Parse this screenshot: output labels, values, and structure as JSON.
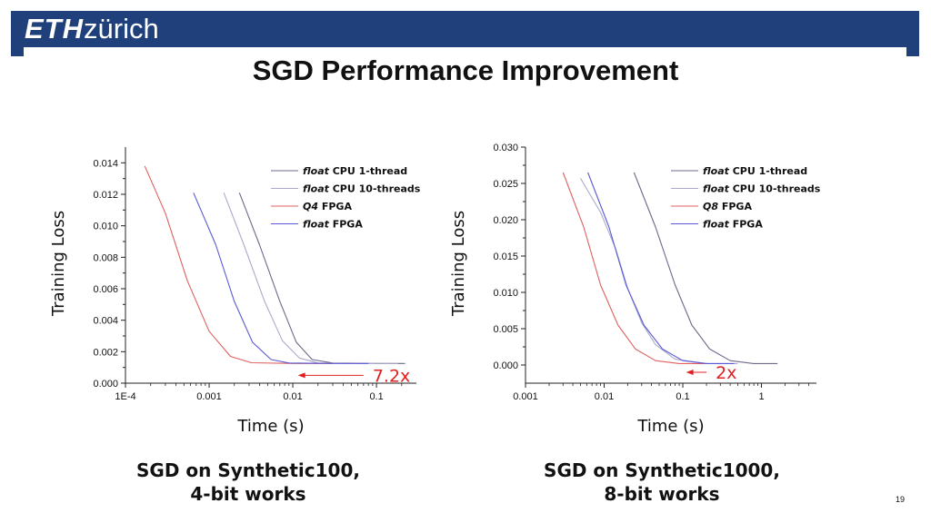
{
  "header": {
    "logo_bold": "ETH",
    "logo_rest": "zürich",
    "title": "SGD Performance Improvement",
    "brand_color": "#1f407a"
  },
  "chart_data": [
    {
      "type": "line",
      "xscale": "log",
      "xlim": [
        0.0001,
        0.3
      ],
      "xticks": [
        0.0001,
        0.001,
        0.01,
        0.1
      ],
      "xtick_labels": [
        "1E-4",
        "0.001",
        "0.01",
        "0.1"
      ],
      "ylim": [
        0,
        0.015
      ],
      "yticks": [
        0,
        0.002,
        0.004,
        0.006,
        0.008,
        0.01,
        0.012,
        0.014
      ],
      "ytick_labels": [
        "0.000",
        "0.002",
        "0.004",
        "0.006",
        "0.008",
        "0.010",
        "0.012",
        "0.014"
      ],
      "xlabel": "Time (s)",
      "ylabel": "Training Loss",
      "legend_position": "top-right",
      "series": [
        {
          "name_em": "float",
          "name_rest": "  CPU 1-thread",
          "color": "#6a6a8a",
          "points": [
            [
              0.0023,
              0.0121
            ],
            [
              0.004,
              0.0088
            ],
            [
              0.007,
              0.0052
            ],
            [
              0.011,
              0.0026
            ],
            [
              0.017,
              0.0015
            ],
            [
              0.03,
              0.00128
            ],
            [
              0.1,
              0.00125
            ],
            [
              0.22,
              0.00125
            ]
          ]
        },
        {
          "name_em": "float",
          "name_rest": " CPU 10-threads",
          "color": "#aaaacc",
          "points": [
            [
              0.0015,
              0.0121
            ],
            [
              0.0026,
              0.0088
            ],
            [
              0.0046,
              0.0052
            ],
            [
              0.0075,
              0.0027
            ],
            [
              0.012,
              0.0016
            ],
            [
              0.02,
              0.00128
            ],
            [
              0.06,
              0.00125
            ],
            [
              0.18,
              0.00125
            ]
          ]
        },
        {
          "name_em": "Q4",
          "name_rest": " FPGA",
          "color": "#e06060",
          "points": [
            [
              0.00017,
              0.0138
            ],
            [
              0.0003,
              0.0108
            ],
            [
              0.00055,
              0.0065
            ],
            [
              0.001,
              0.0033
            ],
            [
              0.0018,
              0.0017
            ],
            [
              0.0032,
              0.0013
            ],
            [
              0.01,
              0.00125
            ],
            [
              0.03,
              0.00125
            ]
          ]
        },
        {
          "name_em": "float",
          "name_rest": " FPGA",
          "color": "#5a5ad8",
          "points": [
            [
              0.00065,
              0.0121
            ],
            [
              0.0012,
              0.0088
            ],
            [
              0.002,
              0.0052
            ],
            [
              0.0033,
              0.0026
            ],
            [
              0.0055,
              0.0015
            ],
            [
              0.009,
              0.00128
            ],
            [
              0.03,
              0.00125
            ],
            [
              0.08,
              0.00125
            ]
          ]
        }
      ],
      "annotation": {
        "text": "7.2x",
        "color": "#e02020",
        "arrow_from_x": 0.07,
        "arrow_to_x": 0.0115,
        "y": 0.0005
      }
    },
    {
      "type": "line",
      "xscale": "log",
      "xlim": [
        0.001,
        5
      ],
      "xticks": [
        0.001,
        0.01,
        0.1,
        1
      ],
      "xtick_labels": [
        "0.001",
        "0.01",
        "0.1",
        "1"
      ],
      "ylim": [
        -0.0025,
        0.03
      ],
      "yticks": [
        0,
        0.005,
        0.01,
        0.015,
        0.02,
        0.025,
        0.03
      ],
      "ytick_labels": [
        "0.000",
        "0.005",
        "0.010",
        "0.015",
        "0.020",
        "0.025",
        "0.030"
      ],
      "xlabel": "Time (s)",
      "ylabel": "Training Loss",
      "legend_position": "top-right",
      "series": [
        {
          "name_em": "float",
          "name_rest": "  CPU 1-thread",
          "color": "#6a6a8a",
          "points": [
            [
              0.024,
              0.0265
            ],
            [
              0.045,
              0.019
            ],
            [
              0.08,
              0.011
            ],
            [
              0.13,
              0.0055
            ],
            [
              0.22,
              0.0022
            ],
            [
              0.4,
              0.0006
            ],
            [
              0.8,
              0.0002
            ],
            [
              1.6,
              0.0002
            ]
          ]
        },
        {
          "name_em": "float",
          "name_rest": " CPU 10-threads",
          "color": "#aaaacc",
          "points": [
            [
              0.005,
              0.0257
            ],
            [
              0.009,
              0.021
            ],
            [
              0.014,
              0.016
            ],
            [
              0.02,
              0.0105
            ],
            [
              0.03,
              0.0058
            ],
            [
              0.045,
              0.0028
            ],
            [
              0.08,
              0.0008
            ],
            [
              0.2,
              0.0002
            ],
            [
              0.5,
              0.0002
            ]
          ]
        },
        {
          "name_em": "Q8",
          "name_rest": " FPGA",
          "color": "#e06060",
          "points": [
            [
              0.003,
              0.0265
            ],
            [
              0.0055,
              0.019
            ],
            [
              0.009,
              0.011
            ],
            [
              0.015,
              0.0055
            ],
            [
              0.025,
              0.0022
            ],
            [
              0.045,
              0.0006
            ],
            [
              0.09,
              0.0002
            ],
            [
              0.2,
              0.0002
            ]
          ]
        },
        {
          "name_em": "float",
          "name_rest": " FPGA",
          "color": "#5a5ad8",
          "points": [
            [
              0.0062,
              0.0265
            ],
            [
              0.0115,
              0.019
            ],
            [
              0.019,
              0.011
            ],
            [
              0.032,
              0.0055
            ],
            [
              0.055,
              0.0022
            ],
            [
              0.1,
              0.0006
            ],
            [
              0.2,
              0.0002
            ],
            [
              0.45,
              0.0002
            ]
          ]
        }
      ],
      "annotation": {
        "text": "2x",
        "color": "#e02020",
        "arrow_from_x": 0.2,
        "arrow_to_x": 0.11,
        "y": -0.001
      }
    }
  ],
  "captions": [
    {
      "line1": "SGD on Synthetic100,",
      "line2": "4-bit works"
    },
    {
      "line1": "SGD on Synthetic1000,",
      "line2": "8-bit works"
    }
  ],
  "page_number": "19"
}
